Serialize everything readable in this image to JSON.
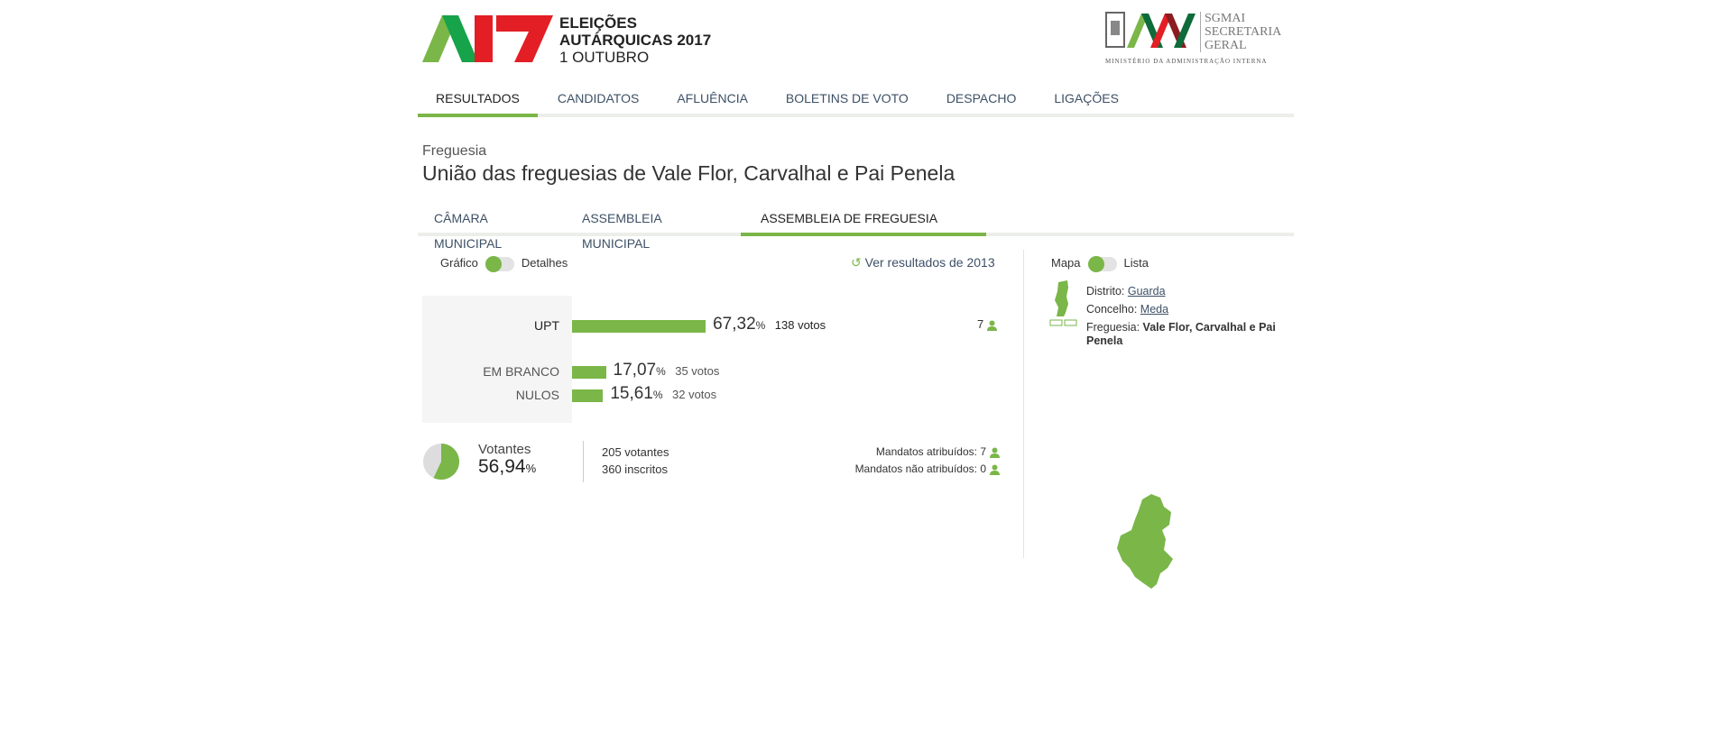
{
  "header": {
    "logo_lines": [
      "ELEIÇÕES",
      "AUTÁRQUICAS 2017",
      "1 OUTUBRO"
    ],
    "logo_mark": "A17",
    "ministry_logo": {
      "lines": [
        "SGMAI",
        "SECRETARIA",
        "GERAL"
      ],
      "caption": "MINISTÉRIO DA ADMINISTRAÇÃO INTERNA"
    }
  },
  "nav": [
    {
      "label": "RESULTADOS",
      "active": true
    },
    {
      "label": "CANDIDATOS"
    },
    {
      "label": "AFLUÊNCIA"
    },
    {
      "label": "BOLETINS DE VOTO"
    },
    {
      "label": "DESPACHO"
    },
    {
      "label": "LIGAÇÕES"
    }
  ],
  "page": {
    "level": "Freguesia",
    "title": "União das freguesias de Vale Flor, Carvalhal e Pai Penela"
  },
  "tabs": [
    {
      "label": "CÂMARA MUNICIPAL"
    },
    {
      "label": "ASSEMBLEIA MUNICIPAL"
    },
    {
      "label": "ASSEMBLEIA DE FREGUESIA",
      "active": true
    }
  ],
  "view_toggle": {
    "left": "Gráfico",
    "right": "Detalhes",
    "selected": "Gráfico"
  },
  "history_link": "Ver resultados de 2013",
  "results": [
    {
      "name": "UPT",
      "pct": "67,32",
      "pct_value": 67.32,
      "votes": "138 votos",
      "seats": "7"
    },
    {
      "name": "EM BRANCO",
      "pct": "17,07",
      "pct_value": 17.07,
      "votes": "35 votos"
    },
    {
      "name": "NULOS",
      "pct": "15,61",
      "pct_value": 15.61,
      "votes": "32 votos"
    }
  ],
  "pct_symbol": "%",
  "turnout": {
    "label": "Votantes",
    "pct": "56,94",
    "pct_value": 56.94,
    "voters": "205 votantes",
    "registered": "360 inscritos",
    "seats_assigned": "Mandatos atribuídos: 7",
    "seats_unassigned": "Mandatos não atribuídos: 0"
  },
  "map_toggle": {
    "left": "Mapa",
    "right": "Lista",
    "selected": "Mapa"
  },
  "location": {
    "distrito_label": "Distrito:",
    "distrito": "Guarda",
    "concelho_label": "Concelho:",
    "concelho": "Meda",
    "freguesia_label": "Freguesia:",
    "freguesia": "Vale Flor, Carvalhal e Pai Penela"
  },
  "colors": {
    "accent": "#7ab648",
    "red": "#e31e24",
    "link": "#3d5066"
  }
}
